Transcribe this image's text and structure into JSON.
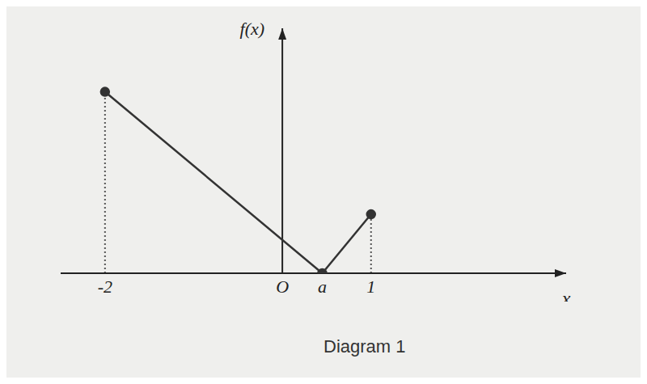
{
  "chart_data": {
    "type": "line",
    "title": "Diagram 1",
    "xlabel": "x",
    "ylabel": "f(x)",
    "x": [
      -2,
      0.45,
      1
    ],
    "values": [
      2,
      0,
      0.65
    ],
    "color": "#333333",
    "marker": "circle",
    "line_style": "solid",
    "xlim": [
      -2.5,
      3.2
    ],
    "xticks": [
      -2,
      {
        "value": 0,
        "label": "O"
      },
      {
        "value": 0.45,
        "label": "a"
      },
      1
    ],
    "ylim": [
      0,
      2.7
    ],
    "tick_labels": "x",
    "grid": false
  }
}
